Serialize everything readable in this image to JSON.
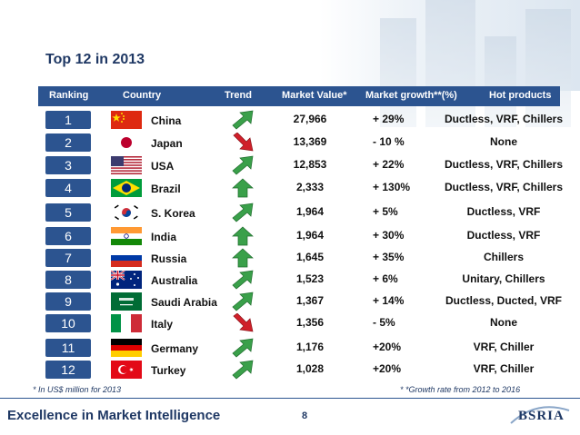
{
  "title": "Top 12 in 2013",
  "columns": {
    "ranking": "Ranking",
    "country": "Country",
    "trend": "Trend",
    "market_value": "Market Value*",
    "market_growth": "Market growth**(%)",
    "hot_products": "Hot products"
  },
  "rows": [
    {
      "rank": "1",
      "country": "China",
      "market_value": "27,966",
      "market_growth": "+ 29%",
      "hot_products": "Ductless, VRF, Chillers",
      "trend": "up-right",
      "flag": "china"
    },
    {
      "rank": "2",
      "country": "Japan",
      "market_value": "13,369",
      "market_growth": "- 10 %",
      "hot_products": "None",
      "trend": "down",
      "flag": "japan"
    },
    {
      "rank": "3",
      "country": "USA",
      "market_value": "12,853",
      "market_growth": "+ 22%",
      "hot_products": "Ductless, VRF, Chillers",
      "trend": "up-right",
      "flag": "usa"
    },
    {
      "rank": "4",
      "country": "Brazil",
      "market_value": "2,333",
      "market_growth": "+ 130%",
      "hot_products": "Ductless, VRF, Chillers",
      "trend": "up",
      "flag": "brazil"
    },
    {
      "rank": "5",
      "country": "S. Korea",
      "market_value": "1,964",
      "market_growth": "+ 5%",
      "hot_products": "Ductless, VRF",
      "trend": "up-right",
      "flag": "korea"
    },
    {
      "rank": "6",
      "country": "India",
      "market_value": "1,964",
      "market_growth": "+ 30%",
      "hot_products": "Ductless, VRF",
      "trend": "up",
      "flag": "india"
    },
    {
      "rank": "7",
      "country": "Russia",
      "market_value": "1,645",
      "market_growth": "+ 35%",
      "hot_products": "Chillers",
      "trend": "up",
      "flag": "russia"
    },
    {
      "rank": "8",
      "country": "Australia",
      "market_value": "1,523",
      "market_growth": "+ 6%",
      "hot_products": "Unitary, Chillers",
      "trend": "up-right",
      "flag": "australia"
    },
    {
      "rank": "9",
      "country": "Saudi Arabia",
      "market_value": "1,367",
      "market_growth": "+ 14%",
      "hot_products": "Ductless, Ducted, VRF",
      "trend": "up-right",
      "flag": "saudi"
    },
    {
      "rank": "10",
      "country": "Italy",
      "market_value": "1,356",
      "market_growth": "- 5%",
      "hot_products": "None",
      "trend": "down",
      "flag": "italy"
    },
    {
      "rank": "11",
      "country": "Germany",
      "market_value": "1,176",
      "market_growth": "+20%",
      "hot_products": "VRF, Chiller",
      "trend": "up-right",
      "flag": "germany"
    },
    {
      "rank": "12",
      "country": "Turkey",
      "market_value": "1,028",
      "market_growth": "+20%",
      "hot_products": "VRF, Chiller",
      "trend": "up-right",
      "flag": "turkey"
    }
  ],
  "footnotes": {
    "left": "* In US$ million for 2013",
    "right": "* *Growth rate from 2012 to 2016"
  },
  "footer": {
    "tagline": "Excellence in Market Intelligence",
    "page": "8",
    "logo": "BSRIA"
  },
  "colors": {
    "accent": "#2c5490",
    "title": "#1f3864",
    "up_arrow": "#3aa04a",
    "down_arrow": "#d0202a"
  }
}
